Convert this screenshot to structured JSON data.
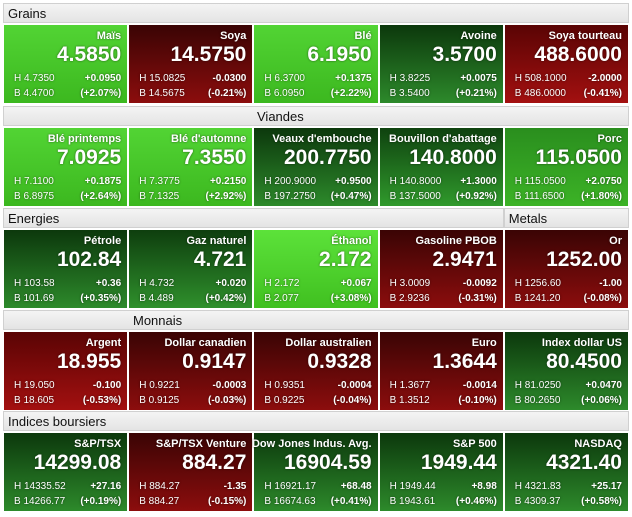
{
  "rows": [
    {
      "groups": [
        {
          "title": "Grains",
          "tiles": [
            {
              "name": "Maïs",
              "value": "4.5850",
              "high": "H 4.7350",
              "change": "+0.0950",
              "low": "B 4.4700",
              "percent": "(+2.07%)",
              "color": [
                "#52d434",
                "#3cb81f"
              ]
            },
            {
              "name": "Soya",
              "value": "14.5750",
              "high": "H 15.0825",
              "change": "-0.0300",
              "low": "B 14.5675",
              "percent": "(-0.21%)",
              "color": [
                "#3a0404",
                "#8c0d0d"
              ]
            },
            {
              "name": "Blé",
              "value": "6.1950",
              "high": "H 6.3700",
              "change": "+0.1375",
              "low": "B 6.0950",
              "percent": "(+2.22%)",
              "color": [
                "#52d434",
                "#3cb81f"
              ]
            },
            {
              "name": "Avoine",
              "value": "3.5700",
              "high": "H 3.8225",
              "change": "+0.0075",
              "low": "B 3.5400",
              "percent": "(+0.21%)",
              "color": [
                "#0c380c",
                "#2d8a2b"
              ]
            },
            {
              "name": "Soya tourteau",
              "value": "488.6000",
              "high": "H 508.1000",
              "change": "-2.0000",
              "low": "B 486.0000",
              "percent": "(-0.41%)",
              "color": [
                "#5a0404",
                "#a31010"
              ]
            }
          ]
        }
      ]
    },
    {
      "groups": [
        {
          "title": "Viandes",
          "tiles": [
            {
              "name": "Blé printemps",
              "value": "7.0925",
              "high": "H 7.1100",
              "change": "+0.1875",
              "low": "B 6.8975",
              "percent": "(+2.64%)",
              "color": [
                "#52d434",
                "#3cb81f"
              ]
            },
            {
              "name": "Blé d'automne",
              "value": "7.3550",
              "high": "H 7.3775",
              "change": "+0.2150",
              "low": "B 7.1325",
              "percent": "(+2.92%)",
              "color": [
                "#52d434",
                "#3cb81f"
              ]
            },
            {
              "name": "Veaux d'embouche",
              "value": "200.7750",
              "high": "H 200.9000",
              "change": "+0.9500",
              "low": "B 197.2750",
              "percent": "(+0.47%)",
              "color": [
                "#0c380c",
                "#2d8a2b"
              ]
            },
            {
              "name": "Bouvillon d'abattage",
              "value": "140.8000",
              "high": "H 140.8000",
              "change": "+1.3000",
              "low": "B 137.5000",
              "percent": "(+0.92%)",
              "color": [
                "#0f420f",
                "#309a2c"
              ]
            },
            {
              "name": "Porc",
              "value": "115.0500",
              "high": "H 115.0500",
              "change": "+2.0750",
              "low": "B 111.6500",
              "percent": "(+1.80%)",
              "color": [
                "#2a8e1e",
                "#3cb326"
              ]
            }
          ]
        }
      ]
    },
    {
      "groups": [
        {
          "title": "Energies",
          "tiles": [
            {
              "name": "Pétrole",
              "value": "102.84",
              "high": "H 103.58",
              "change": "+0.36",
              "low": "B 101.69",
              "percent": "(+0.35%)",
              "color": [
                "#0c380c",
                "#2d8a2b"
              ]
            },
            {
              "name": "Gaz naturel",
              "value": "4.721",
              "high": "H 4.732",
              "change": "+0.020",
              "low": "B 4.489",
              "percent": "(+0.42%)",
              "color": [
                "#0e3e0e",
                "#2f902c"
              ]
            },
            {
              "name": "Éthanol",
              "value": "2.172",
              "high": "H 2.172",
              "change": "+0.067",
              "low": "B 2.077",
              "percent": "(+3.08%)",
              "color": [
                "#5ce23a",
                "#40c020"
              ]
            },
            {
              "name": "Gasoline PBOB",
              "value": "2.9471",
              "high": "H 3.0009",
              "change": "-0.0092",
              "low": "B 2.9236",
              "percent": "(-0.31%)",
              "color": [
                "#3a0404",
                "#8c0d0d"
              ]
            }
          ]
        },
        {
          "title": "Metals",
          "tiles": [
            {
              "name": "Or",
              "value": "1252.00",
              "high": "H 1256.60",
              "change": "-1.00",
              "low": "B 1241.20",
              "percent": "(-0.08%)",
              "color": [
                "#3a0404",
                "#8c0d0d"
              ]
            }
          ]
        }
      ]
    },
    {
      "groups": [
        {
          "title": "Monnais",
          "tiles": [
            {
              "name": "Argent",
              "value": "18.955",
              "high": "H 19.050",
              "change": "-0.100",
              "low": "B 18.605",
              "percent": "(-0.53%)",
              "color": [
                "#5a0404",
                "#a31010"
              ]
            },
            {
              "name": "Dollar canadien",
              "value": "0.9147",
              "high": "H 0.9221",
              "change": "-0.0003",
              "low": "B 0.9125",
              "percent": "(-0.03%)",
              "color": [
                "#3a0404",
                "#8c0d0d"
              ]
            },
            {
              "name": "Dollar australien",
              "value": "0.9328",
              "high": "H 0.9351",
              "change": "-0.0004",
              "low": "B 0.9225",
              "percent": "(-0.04%)",
              "color": [
                "#3a0404",
                "#8c0d0d"
              ]
            },
            {
              "name": "Euro",
              "value": "1.3644",
              "high": "H 1.3677",
              "change": "-0.0014",
              "low": "B 1.3512",
              "percent": "(-0.10%)",
              "color": [
                "#3a0404",
                "#8c0d0d"
              ]
            },
            {
              "name": "Index dollar US",
              "value": "80.4500",
              "high": "H 81.0250",
              "change": "+0.0470",
              "low": "B 80.2650",
              "percent": "(+0.06%)",
              "color": [
                "#0c380c",
                "#2d8a2b"
              ]
            }
          ]
        }
      ]
    },
    {
      "groups": [
        {
          "title": "Indices boursiers",
          "tiles": [
            {
              "name": "S&P/TSX",
              "value": "14299.08",
              "high": "H 14335.52",
              "change": "+27.16",
              "low": "B 14266.77",
              "percent": "(+0.19%)",
              "color": [
                "#0c380c",
                "#2d8a2b"
              ]
            },
            {
              "name": "S&P/TSX Venture",
              "value": "884.27",
              "high": "H 884.27",
              "change": "-1.35",
              "low": "B 884.27",
              "percent": "(-0.15%)",
              "color": [
                "#3a0404",
                "#8c0d0d"
              ]
            },
            {
              "name": "Dow Jones Indus. Avg.",
              "value": "16904.59",
              "high": "H 16921.17",
              "change": "+68.48",
              "low": "B 16674.63",
              "percent": "(+0.41%)",
              "color": [
                "#0c380c",
                "#2d8a2b"
              ]
            },
            {
              "name": "S&P 500",
              "value": "1949.44",
              "high": "H 1949.44",
              "change": "+8.98",
              "low": "B 1943.61",
              "percent": "(+0.46%)",
              "color": [
                "#0c380c",
                "#2d8a2b"
              ]
            },
            {
              "name": "NASDAQ",
              "value": "4321.40",
              "high": "H 4321.83",
              "change": "+25.17",
              "low": "B 4309.37",
              "percent": "(+0.58%)",
              "color": [
                "#0c380c",
                "#2d8a2b"
              ]
            }
          ]
        }
      ]
    }
  ]
}
